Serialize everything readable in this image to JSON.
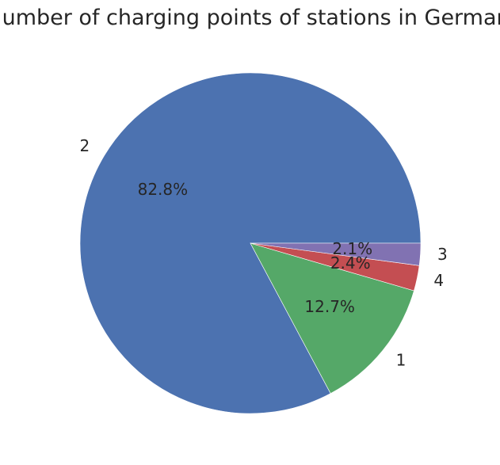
{
  "chart_data": {
    "type": "pie",
    "title": "Number of charging points of stations in Germany",
    "start_angle_deg": 0,
    "direction": "counterclockwise",
    "slices": [
      {
        "label": "2",
        "value": 82.8,
        "pct_text": "82.8%",
        "color": "#4c72b0"
      },
      {
        "label": "1",
        "value": 12.7,
        "pct_text": "12.7%",
        "color": "#55a868"
      },
      {
        "label": "4",
        "value": 2.4,
        "pct_text": "2.4%",
        "color": "#c44e52"
      },
      {
        "label": "3",
        "value": 2.1,
        "pct_text": "2.1%",
        "color": "#8172b2"
      }
    ]
  }
}
